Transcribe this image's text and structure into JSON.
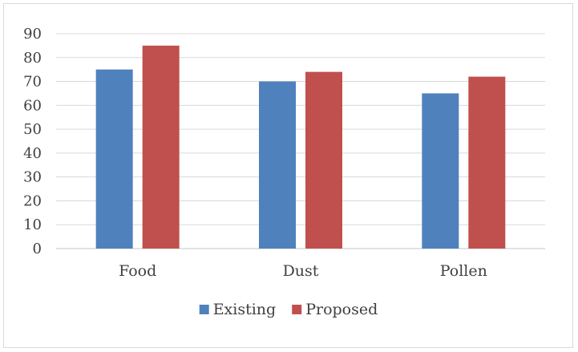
{
  "chart_data": {
    "type": "bar",
    "categories": [
      "Food",
      "Dust",
      "Pollen"
    ],
    "series": [
      {
        "name": "Existing",
        "values": [
          75,
          70,
          65
        ],
        "color": "#4f81bd"
      },
      {
        "name": "Proposed",
        "values": [
          85,
          74,
          72
        ],
        "color": "#c0504d"
      }
    ],
    "title": "",
    "xlabel": "",
    "ylabel": "",
    "ylim": [
      0,
      90
    ],
    "yticks": [
      "0",
      "10",
      "20",
      "30",
      "40",
      "50",
      "60",
      "70",
      "80",
      "90"
    ],
    "grid": true,
    "legend_position": "bottom"
  }
}
